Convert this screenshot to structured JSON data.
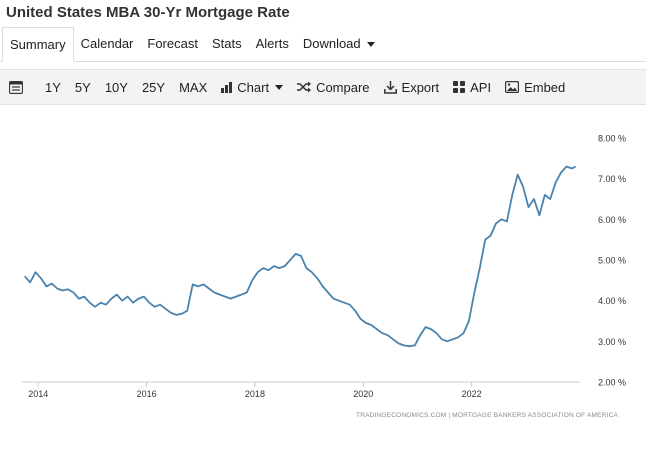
{
  "title": "United States MBA 30-Yr Mortgage Rate",
  "tabs": [
    {
      "label": "Summary",
      "active": true
    },
    {
      "label": "Calendar"
    },
    {
      "label": "Forecast"
    },
    {
      "label": "Stats"
    },
    {
      "label": "Alerts"
    },
    {
      "label": "Download"
    }
  ],
  "toolbar": {
    "ranges": [
      "1Y",
      "5Y",
      "10Y",
      "25Y",
      "MAX"
    ],
    "chart_label": "Chart",
    "compare_label": "Compare",
    "export_label": "Export",
    "api_label": "API",
    "embed_label": "Embed"
  },
  "chart_data": {
    "type": "line",
    "ylim": [
      2.0,
      8.0
    ],
    "yticks": [
      {
        "value": 8,
        "label": "8.00 %"
      },
      {
        "value": 7,
        "label": "7.00 %"
      },
      {
        "value": 6,
        "label": "6.00 %"
      },
      {
        "value": 5,
        "label": "5.00 %"
      },
      {
        "value": 4,
        "label": "4.00 %"
      },
      {
        "value": 3,
        "label": "3.00 %"
      },
      {
        "value": 2,
        "label": "2.00 %"
      }
    ],
    "xlim": [
      2013.7,
      2024.0
    ],
    "xticks": [
      {
        "value": 2014,
        "label": "2014"
      },
      {
        "value": 2016,
        "label": "2016"
      },
      {
        "value": 2018,
        "label": "2018"
      },
      {
        "value": 2020,
        "label": "2020"
      },
      {
        "value": 2022,
        "label": "2022"
      }
    ],
    "line_color": "#4a83ad",
    "source": "TRADINGECONOMICS.COM  |  MORTGAGE BANKERS ASSOCIATION OF AMERICA",
    "series": [
      {
        "x": [
          2013.75,
          2013.85,
          2013.95,
          2014.05,
          2014.15,
          2014.25,
          2014.35,
          2014.45,
          2014.55,
          2014.65,
          2014.75,
          2014.85,
          2014.95,
          2015.05,
          2015.15,
          2015.25,
          2015.35,
          2015.45,
          2015.55,
          2015.65,
          2015.75,
          2015.85,
          2015.95,
          2016.05,
          2016.15,
          2016.25,
          2016.35,
          2016.45,
          2016.55,
          2016.65,
          2016.75,
          2016.85,
          2016.95,
          2017.05,
          2017.15,
          2017.25,
          2017.35,
          2017.45,
          2017.55,
          2017.65,
          2017.75,
          2017.85,
          2017.95,
          2018.05,
          2018.15,
          2018.25,
          2018.35,
          2018.45,
          2018.55,
          2018.65,
          2018.75,
          2018.85,
          2018.95,
          2019.05,
          2019.15,
          2019.25,
          2019.35,
          2019.45,
          2019.55,
          2019.65,
          2019.75,
          2019.85,
          2019.95,
          2020.05,
          2020.15,
          2020.25,
          2020.35,
          2020.45,
          2020.55,
          2020.65,
          2020.75,
          2020.85,
          2020.95,
          2021.05,
          2021.15,
          2021.25,
          2021.35,
          2021.45,
          2021.55,
          2021.65,
          2021.75,
          2021.85,
          2021.95,
          2022.05,
          2022.15,
          2022.25,
          2022.35,
          2022.45,
          2022.55,
          2022.65,
          2022.75,
          2022.85,
          2022.95,
          2023.05,
          2023.15,
          2023.25,
          2023.35,
          2023.45,
          2023.55,
          2023.65,
          2023.75,
          2023.85,
          2023.92
        ],
        "y": [
          4.6,
          4.45,
          4.7,
          4.55,
          4.35,
          4.42,
          4.3,
          4.25,
          4.28,
          4.2,
          4.05,
          4.1,
          3.95,
          3.85,
          3.95,
          3.9,
          4.05,
          4.15,
          4.0,
          4.1,
          3.95,
          4.05,
          4.1,
          3.95,
          3.85,
          3.9,
          3.8,
          3.7,
          3.65,
          3.68,
          3.75,
          4.4,
          4.35,
          4.4,
          4.3,
          4.2,
          4.15,
          4.1,
          4.05,
          4.1,
          4.15,
          4.2,
          4.5,
          4.7,
          4.8,
          4.75,
          4.85,
          4.8,
          4.85,
          5.0,
          5.15,
          5.1,
          4.8,
          4.7,
          4.55,
          4.35,
          4.2,
          4.05,
          4.0,
          3.95,
          3.9,
          3.75,
          3.55,
          3.45,
          3.4,
          3.3,
          3.2,
          3.15,
          3.05,
          2.95,
          2.9,
          2.88,
          2.9,
          3.15,
          3.35,
          3.3,
          3.2,
          3.05,
          3.0,
          3.05,
          3.1,
          3.2,
          3.5,
          4.2,
          4.8,
          5.5,
          5.6,
          5.9,
          6.0,
          5.95,
          6.6,
          7.1,
          6.8,
          6.3,
          6.5,
          6.1,
          6.6,
          6.5,
          6.9,
          7.15,
          7.3,
          7.25,
          7.3
        ]
      }
    ]
  }
}
